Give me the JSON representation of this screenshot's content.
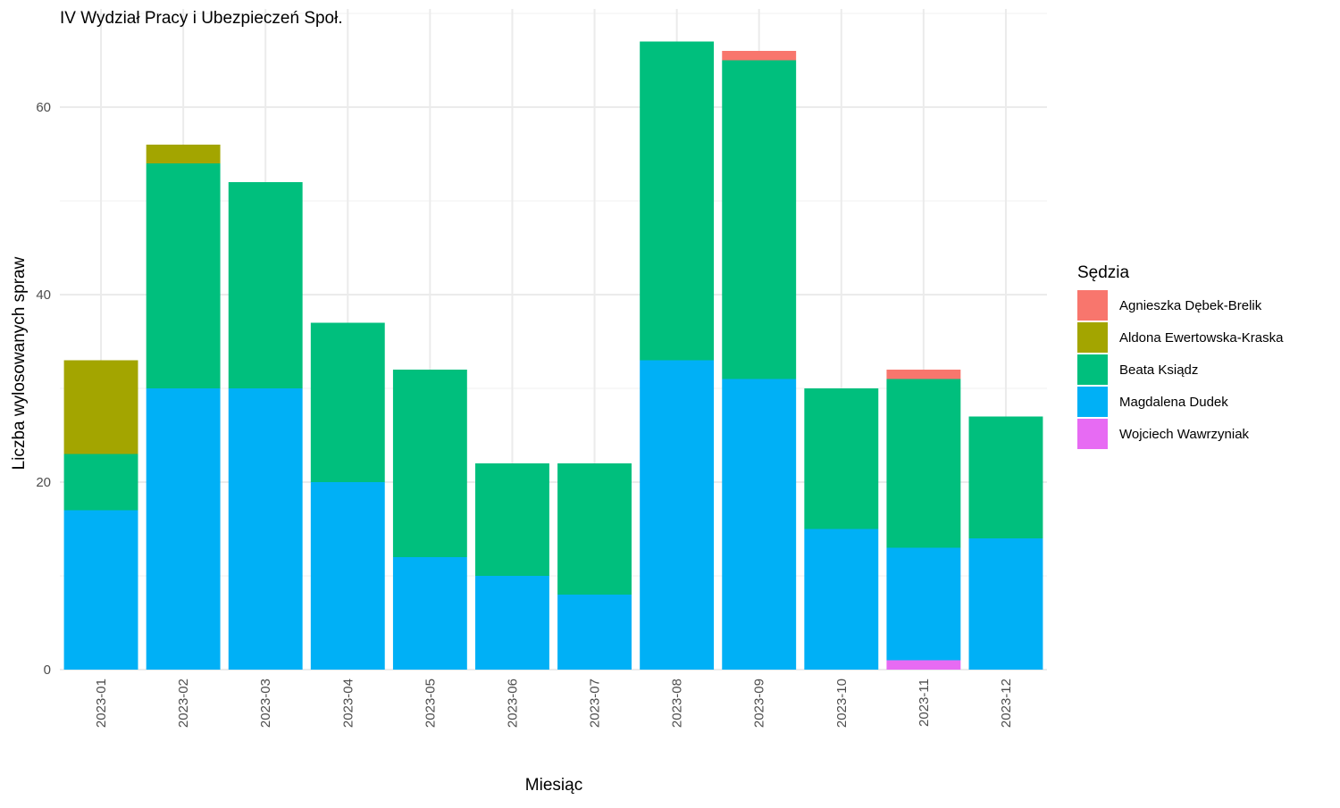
{
  "chart_data": {
    "type": "bar",
    "stacked": true,
    "title": "IV Wydział Pracy i Ubezpieczeń Społ.",
    "xlabel": "Miesiąc",
    "ylabel": "Liczba wylosowanych spraw",
    "ylim": [
      0,
      70
    ],
    "yticks": [
      0,
      20,
      40,
      60
    ],
    "grid": true,
    "legend_position": "right",
    "legend_title": "Sędzia",
    "categories": [
      "2023-01",
      "2023-02",
      "2023-03",
      "2023-04",
      "2023-05",
      "2023-06",
      "2023-07",
      "2023-08",
      "2023-09",
      "2023-10",
      "2023-11",
      "2023-12"
    ],
    "stack_order": [
      "Wojciech Wawrzyniak",
      "Magdalena Dudek",
      "Beata Ksiądz",
      "Aldona Ewertowska-Kraska",
      "Agnieszka Dębek-Brelik"
    ],
    "series": [
      {
        "name": "Agnieszka Dębek-Brelik",
        "color": "#F8766D",
        "values": [
          0,
          0,
          0,
          0,
          0,
          0,
          0,
          0,
          1,
          0,
          1,
          0
        ]
      },
      {
        "name": "Aldona Ewertowska-Kraska",
        "color": "#A3A500",
        "values": [
          10,
          2,
          0,
          0,
          0,
          0,
          0,
          0,
          0,
          0,
          0,
          0
        ]
      },
      {
        "name": "Beata Ksiądz",
        "color": "#00BF7D",
        "values": [
          6,
          24,
          22,
          17,
          20,
          12,
          14,
          34,
          34,
          15,
          18,
          13
        ]
      },
      {
        "name": "Magdalena Dudek",
        "color": "#00B0F6",
        "values": [
          17,
          30,
          30,
          20,
          12,
          10,
          8,
          33,
          31,
          15,
          12,
          14
        ]
      },
      {
        "name": "Wojciech Wawrzyniak",
        "color": "#E76BF3",
        "values": [
          0,
          0,
          0,
          0,
          0,
          0,
          0,
          0,
          0,
          0,
          1,
          0
        ]
      }
    ]
  }
}
